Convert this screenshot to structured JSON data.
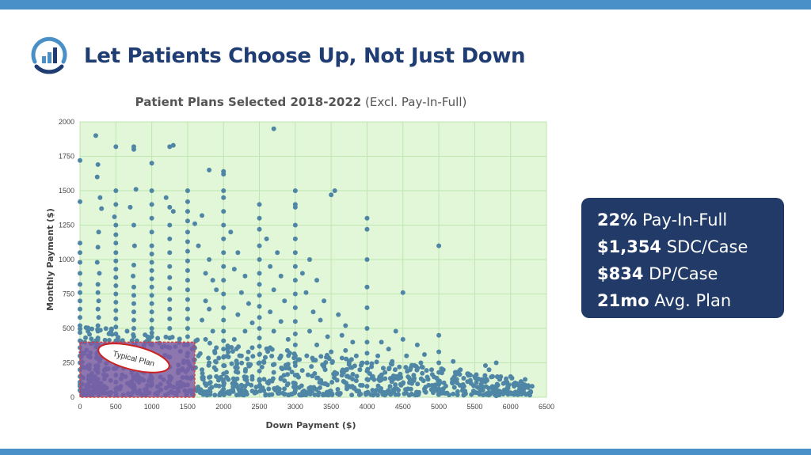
{
  "slide": {
    "title": "Let Patients Choose Up, Not Just Down",
    "logo_icon": "bar-chart-gauge-icon"
  },
  "chart_title": {
    "bold": "Patient Plans Selected 2018-2022",
    "rest": "(Excl. Pay-In-Full)"
  },
  "chart_data": {
    "type": "scatter",
    "title": "Patient Plans Selected 2018-2022 (Excl. Pay-In-Full)",
    "xlabel": "Down Payment ($)",
    "ylabel": "Monthly Payment ($)",
    "xlim": [
      0,
      6500
    ],
    "ylim": [
      0,
      2000
    ],
    "xticks": [
      0,
      500,
      1000,
      1500,
      2000,
      2500,
      3000,
      3500,
      4000,
      4500,
      5000,
      5500,
      6000,
      6500
    ],
    "yticks": [
      0,
      250,
      500,
      750,
      1000,
      1250,
      1500,
      1750,
      2000
    ],
    "grid": true,
    "plot_background": "#e2f7d8",
    "grid_color": "#bfe6b0",
    "point_color": "#4f86a6",
    "points": [
      [
        0,
        1720
      ],
      [
        0,
        1420
      ],
      [
        0,
        1120
      ],
      [
        0,
        1050
      ],
      [
        0,
        980
      ],
      [
        0,
        900
      ],
      [
        0,
        820
      ],
      [
        0,
        760
      ],
      [
        0,
        700
      ],
      [
        0,
        640
      ],
      [
        0,
        580
      ],
      [
        0,
        520
      ],
      [
        0,
        470
      ],
      [
        0,
        410
      ],
      [
        0,
        360
      ],
      [
        0,
        300
      ],
      [
        0,
        250
      ],
      [
        0,
        200
      ],
      [
        0,
        150
      ],
      [
        0,
        110
      ],
      [
        0,
        80
      ],
      [
        0,
        50
      ],
      [
        220,
        1900
      ],
      [
        250,
        1690
      ],
      [
        280,
        1450
      ],
      [
        300,
        1370
      ],
      [
        240,
        1600
      ],
      [
        260,
        1200
      ],
      [
        250,
        1090
      ],
      [
        240,
        980
      ],
      [
        270,
        900
      ],
      [
        250,
        820
      ],
      [
        250,
        760
      ],
      [
        260,
        700
      ],
      [
        250,
        640
      ],
      [
        260,
        580
      ],
      [
        250,
        520
      ],
      [
        250,
        480
      ],
      [
        250,
        430
      ],
      [
        250,
        380
      ],
      [
        250,
        330
      ],
      [
        250,
        280
      ],
      [
        250,
        230
      ],
      [
        250,
        180
      ],
      [
        250,
        130
      ],
      [
        250,
        90
      ],
      [
        250,
        50
      ],
      [
        500,
        1820
      ],
      [
        500,
        1500
      ],
      [
        500,
        1400
      ],
      [
        480,
        1310
      ],
      [
        500,
        1250
      ],
      [
        500,
        1180
      ],
      [
        500,
        1120
      ],
      [
        500,
        1050
      ],
      [
        500,
        990
      ],
      [
        500,
        930
      ],
      [
        500,
        870
      ],
      [
        500,
        810
      ],
      [
        500,
        750
      ],
      [
        500,
        690
      ],
      [
        500,
        630
      ],
      [
        500,
        570
      ],
      [
        500,
        510
      ],
      [
        500,
        460
      ],
      [
        500,
        410
      ],
      [
        500,
        360
      ],
      [
        500,
        310
      ],
      [
        500,
        260
      ],
      [
        500,
        210
      ],
      [
        500,
        160
      ],
      [
        500,
        110
      ],
      [
        500,
        60
      ],
      [
        750,
        1800
      ],
      [
        750,
        1820
      ],
      [
        780,
        1510
      ],
      [
        700,
        1380
      ],
      [
        750,
        1250
      ],
      [
        760,
        1100
      ],
      [
        750,
        960
      ],
      [
        740,
        880
      ],
      [
        750,
        800
      ],
      [
        750,
        740
      ],
      [
        750,
        680
      ],
      [
        750,
        620
      ],
      [
        750,
        560
      ],
      [
        750,
        500
      ],
      [
        750,
        440
      ],
      [
        750,
        380
      ],
      [
        750,
        320
      ],
      [
        750,
        260
      ],
      [
        750,
        200
      ],
      [
        750,
        140
      ],
      [
        750,
        90
      ],
      [
        1000,
        1700
      ],
      [
        1000,
        1500
      ],
      [
        1000,
        1400
      ],
      [
        1000,
        1300
      ],
      [
        1000,
        1200
      ],
      [
        1000,
        1100
      ],
      [
        1000,
        1040
      ],
      [
        1000,
        980
      ],
      [
        1000,
        920
      ],
      [
        1000,
        860
      ],
      [
        1000,
        800
      ],
      [
        1000,
        740
      ],
      [
        1000,
        680
      ],
      [
        1000,
        620
      ],
      [
        1000,
        560
      ],
      [
        1000,
        500
      ],
      [
        1000,
        440
      ],
      [
        1000,
        380
      ],
      [
        1000,
        320
      ],
      [
        1000,
        260
      ],
      [
        1000,
        200
      ],
      [
        1000,
        140
      ],
      [
        1000,
        90
      ],
      [
        1250,
        1820
      ],
      [
        1300,
        1830
      ],
      [
        1200,
        1450
      ],
      [
        1250,
        1380
      ],
      [
        1300,
        1350
      ],
      [
        1250,
        1250
      ],
      [
        1250,
        1150
      ],
      [
        1250,
        1050
      ],
      [
        1250,
        950
      ],
      [
        1250,
        870
      ],
      [
        1250,
        790
      ],
      [
        1250,
        710
      ],
      [
        1250,
        640
      ],
      [
        1250,
        570
      ],
      [
        1250,
        500
      ],
      [
        1250,
        430
      ],
      [
        1250,
        360
      ],
      [
        1250,
        290
      ],
      [
        1250,
        220
      ],
      [
        1250,
        150
      ],
      [
        1250,
        90
      ],
      [
        1500,
        1500
      ],
      [
        1500,
        1420
      ],
      [
        1500,
        1350
      ],
      [
        1500,
        1280
      ],
      [
        1500,
        1200
      ],
      [
        1500,
        1130
      ],
      [
        1500,
        1060
      ],
      [
        1500,
        990
      ],
      [
        1500,
        920
      ],
      [
        1500,
        850
      ],
      [
        1500,
        780
      ],
      [
        1500,
        710
      ],
      [
        1500,
        640
      ],
      [
        1500,
        570
      ],
      [
        1500,
        500
      ],
      [
        1500,
        440
      ],
      [
        1500,
        380
      ],
      [
        1500,
        320
      ],
      [
        1500,
        260
      ],
      [
        1500,
        200
      ],
      [
        1500,
        140
      ],
      [
        1500,
        90
      ],
      [
        1600,
        1260
      ],
      [
        1700,
        1320
      ],
      [
        1650,
        1100
      ],
      [
        1750,
        900
      ],
      [
        1800,
        1000
      ],
      [
        1850,
        850
      ],
      [
        1900,
        780
      ],
      [
        1750,
        700
      ],
      [
        1800,
        640
      ],
      [
        1700,
        560
      ],
      [
        1850,
        480
      ],
      [
        1750,
        420
      ],
      [
        1900,
        360
      ],
      [
        1650,
        300
      ],
      [
        1800,
        250
      ],
      [
        1700,
        200
      ],
      [
        1900,
        150
      ],
      [
        1800,
        100
      ],
      [
        1800,
        1650
      ],
      [
        2000,
        1640
      ],
      [
        2000,
        1620
      ],
      [
        2000,
        1500
      ],
      [
        2000,
        1450
      ],
      [
        2000,
        1350
      ],
      [
        2000,
        1250
      ],
      [
        2000,
        1150
      ],
      [
        2000,
        1050
      ],
      [
        2000,
        950
      ],
      [
        2000,
        850
      ],
      [
        2000,
        750
      ],
      [
        2000,
        650
      ],
      [
        2000,
        560
      ],
      [
        2000,
        480
      ],
      [
        2000,
        410
      ],
      [
        2000,
        350
      ],
      [
        2000,
        290
      ],
      [
        2000,
        230
      ],
      [
        2000,
        170
      ],
      [
        2000,
        110
      ],
      [
        2000,
        60
      ],
      [
        2100,
        1200
      ],
      [
        2200,
        1050
      ],
      [
        2150,
        930
      ],
      [
        2300,
        880
      ],
      [
        2250,
        760
      ],
      [
        2350,
        680
      ],
      [
        2200,
        600
      ],
      [
        2400,
        540
      ],
      [
        2300,
        480
      ],
      [
        2150,
        420
      ],
      [
        2400,
        360
      ],
      [
        2250,
        300
      ],
      [
        2350,
        240
      ],
      [
        2200,
        180
      ],
      [
        2400,
        130
      ],
      [
        2300,
        80
      ],
      [
        2500,
        1400
      ],
      [
        2500,
        1300
      ],
      [
        2500,
        1220
      ],
      [
        2500,
        1100
      ],
      [
        2500,
        1000
      ],
      [
        2500,
        900
      ],
      [
        2500,
        820
      ],
      [
        2500,
        740
      ],
      [
        2500,
        660
      ],
      [
        2500,
        580
      ],
      [
        2500,
        500
      ],
      [
        2500,
        430
      ],
      [
        2500,
        370
      ],
      [
        2500,
        310
      ],
      [
        2500,
        250
      ],
      [
        2500,
        190
      ],
      [
        2500,
        130
      ],
      [
        2500,
        80
      ],
      [
        2700,
        1950
      ],
      [
        2600,
        1150
      ],
      [
        2750,
        1050
      ],
      [
        2650,
        950
      ],
      [
        2800,
        880
      ],
      [
        2700,
        780
      ],
      [
        2850,
        700
      ],
      [
        2650,
        620
      ],
      [
        2800,
        550
      ],
      [
        2700,
        480
      ],
      [
        2900,
        420
      ],
      [
        2650,
        360
      ],
      [
        2800,
        300
      ],
      [
        2900,
        240
      ],
      [
        2700,
        180
      ],
      [
        2850,
        120
      ],
      [
        2750,
        70
      ],
      [
        3000,
        1500
      ],
      [
        3000,
        1400
      ],
      [
        3000,
        1380
      ],
      [
        3000,
        1250
      ],
      [
        3000,
        1150
      ],
      [
        3000,
        1050
      ],
      [
        3000,
        950
      ],
      [
        3000,
        850
      ],
      [
        3000,
        750
      ],
      [
        3000,
        650
      ],
      [
        3000,
        550
      ],
      [
        3000,
        460
      ],
      [
        3000,
        380
      ],
      [
        3000,
        300
      ],
      [
        3000,
        230
      ],
      [
        3000,
        160
      ],
      [
        3000,
        100
      ],
      [
        3000,
        50
      ],
      [
        3200,
        1000
      ],
      [
        3100,
        900
      ],
      [
        3300,
        850
      ],
      [
        3150,
        760
      ],
      [
        3400,
        700
      ],
      [
        3250,
        620
      ],
      [
        3350,
        560
      ],
      [
        3200,
        480
      ],
      [
        3450,
        440
      ],
      [
        3300,
        380
      ],
      [
        3500,
        330
      ],
      [
        3250,
        270
      ],
      [
        3400,
        220
      ],
      [
        3550,
        180
      ],
      [
        3300,
        140
      ],
      [
        3450,
        90
      ],
      [
        3500,
        1470
      ],
      [
        3550,
        1500
      ],
      [
        3600,
        600
      ],
      [
        3700,
        520
      ],
      [
        3650,
        450
      ],
      [
        3800,
        400
      ],
      [
        3700,
        340
      ],
      [
        3850,
        300
      ],
      [
        3750,
        250
      ],
      [
        3900,
        200
      ],
      [
        3650,
        160
      ],
      [
        3850,
        120
      ],
      [
        3750,
        80
      ],
      [
        4000,
        1300
      ],
      [
        4000,
        1220
      ],
      [
        4000,
        1000
      ],
      [
        4000,
        800
      ],
      [
        4000,
        650
      ],
      [
        4000,
        500
      ],
      [
        4000,
        400
      ],
      [
        4000,
        320
      ],
      [
        4000,
        250
      ],
      [
        4000,
        190
      ],
      [
        4000,
        130
      ],
      [
        4000,
        80
      ],
      [
        4200,
        400
      ],
      [
        4300,
        350
      ],
      [
        4150,
        300
      ],
      [
        4400,
        480
      ],
      [
        4350,
        260
      ],
      [
        4450,
        220
      ],
      [
        4250,
        180
      ],
      [
        4500,
        760
      ],
      [
        4500,
        420
      ],
      [
        4550,
        300
      ],
      [
        4400,
        140
      ],
      [
        4600,
        200
      ],
      [
        4500,
        100
      ],
      [
        4700,
        380
      ],
      [
        4800,
        310
      ],
      [
        4750,
        250
      ],
      [
        4900,
        200
      ],
      [
        4650,
        160
      ],
      [
        4850,
        130
      ],
      [
        4950,
        90
      ],
      [
        4800,
        60
      ],
      [
        5000,
        1100
      ],
      [
        5000,
        450
      ],
      [
        5000,
        330
      ],
      [
        5000,
        250
      ],
      [
        5000,
        180
      ],
      [
        5000,
        120
      ],
      [
        5000,
        60
      ],
      [
        5000,
        20
      ],
      [
        5200,
        260
      ],
      [
        5300,
        200
      ],
      [
        5400,
        170
      ],
      [
        5250,
        130
      ],
      [
        5500,
        150
      ],
      [
        5450,
        100
      ],
      [
        5350,
        80
      ],
      [
        5600,
        120
      ],
      [
        5550,
        70
      ],
      [
        5650,
        230
      ],
      [
        5700,
        200
      ],
      [
        5800,
        250
      ],
      [
        5750,
        150
      ],
      [
        5850,
        130
      ],
      [
        5900,
        100
      ],
      [
        5800,
        70
      ],
      [
        5950,
        110
      ],
      [
        6000,
        150
      ],
      [
        6050,
        80
      ],
      [
        5850,
        40
      ],
      [
        6100,
        90
      ],
      [
        6200,
        90
      ],
      [
        6300,
        80
      ],
      [
        5800,
        10
      ]
    ],
    "highlight_box": {
      "x_range": [
        0,
        1600
      ],
      "y_range": [
        0,
        400
      ],
      "label": "Typical Plan"
    }
  },
  "stats": [
    {
      "value": "22%",
      "label": "Pay-In-Full"
    },
    {
      "value": "$1,354",
      "label": "SDC/Case"
    },
    {
      "value": "$834",
      "label": "DP/Case"
    },
    {
      "value": "21mo",
      "label": "Avg. Plan"
    }
  ],
  "colors": {
    "title": "#1f3d73",
    "accent_bar": "#4a90c8",
    "stats_bg": "#213a68",
    "highlight_fill": "#7b5aa6",
    "highlight_border": "#e03a3a"
  }
}
